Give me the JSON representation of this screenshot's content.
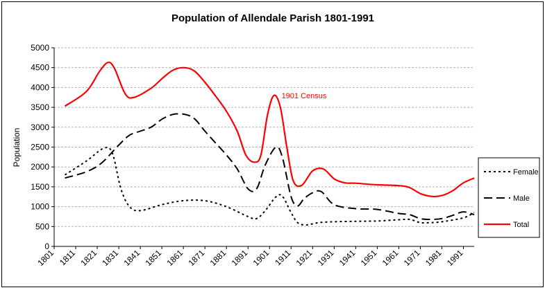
{
  "chart_data": {
    "type": "line",
    "title": "Population of Allendale Parish 1801-1991",
    "xlabel": "",
    "ylabel": "Population",
    "ylim": [
      0,
      5000
    ],
    "yticks": [
      0,
      500,
      1000,
      1500,
      2000,
      2500,
      3000,
      3500,
      4000,
      4500,
      5000
    ],
    "xlim": [
      1801,
      1996
    ],
    "xticks": [
      1801,
      1811,
      1821,
      1831,
      1841,
      1851,
      1861,
      1871,
      1881,
      1891,
      1901,
      1911,
      1921,
      1931,
      1941,
      1951,
      1961,
      1971,
      1981,
      1991
    ],
    "grid": "horizontal dashed",
    "legend_position": "right",
    "annotation": {
      "text": "1901 Census",
      "x": 1904,
      "y": 3800,
      "color": "#ff0000"
    },
    "series": [
      {
        "name": "Female",
        "color": "#000000",
        "style": "dotted",
        "points": [
          [
            1806,
            1800
          ],
          [
            1816,
            2150
          ],
          [
            1824,
            2470
          ],
          [
            1828,
            2350
          ],
          [
            1832,
            1450
          ],
          [
            1836,
            1000
          ],
          [
            1841,
            900
          ],
          [
            1851,
            1050
          ],
          [
            1861,
            1150
          ],
          [
            1871,
            1150
          ],
          [
            1881,
            1000
          ],
          [
            1891,
            750
          ],
          [
            1895,
            700
          ],
          [
            1899,
            900
          ],
          [
            1904,
            1250
          ],
          [
            1907,
            1260
          ],
          [
            1911,
            850
          ],
          [
            1914,
            600
          ],
          [
            1918,
            540
          ],
          [
            1924,
            600
          ],
          [
            1931,
            620
          ],
          [
            1941,
            630
          ],
          [
            1951,
            640
          ],
          [
            1961,
            670
          ],
          [
            1966,
            680
          ],
          [
            1971,
            600
          ],
          [
            1976,
            600
          ],
          [
            1981,
            620
          ],
          [
            1991,
            720
          ],
          [
            1996,
            850
          ]
        ]
      },
      {
        "name": "Male",
        "color": "#000000",
        "style": "dashed",
        "points": [
          [
            1806,
            1720
          ],
          [
            1816,
            1880
          ],
          [
            1823,
            2100
          ],
          [
            1831,
            2550
          ],
          [
            1836,
            2800
          ],
          [
            1841,
            2900
          ],
          [
            1846,
            3000
          ],
          [
            1851,
            3200
          ],
          [
            1856,
            3320
          ],
          [
            1861,
            3330
          ],
          [
            1866,
            3220
          ],
          [
            1871,
            2900
          ],
          [
            1876,
            2600
          ],
          [
            1881,
            2300
          ],
          [
            1886,
            1950
          ],
          [
            1891,
            1450
          ],
          [
            1895,
            1450
          ],
          [
            1899,
            2050
          ],
          [
            1904,
            2500
          ],
          [
            1907,
            2230
          ],
          [
            1911,
            1250
          ],
          [
            1914,
            1020
          ],
          [
            1917,
            1200
          ],
          [
            1921,
            1350
          ],
          [
            1925,
            1380
          ],
          [
            1931,
            1050
          ],
          [
            1941,
            950
          ],
          [
            1951,
            930
          ],
          [
            1961,
            830
          ],
          [
            1966,
            800
          ],
          [
            1971,
            700
          ],
          [
            1976,
            680
          ],
          [
            1981,
            700
          ],
          [
            1986,
            780
          ],
          [
            1991,
            870
          ],
          [
            1996,
            800
          ]
        ]
      },
      {
        "name": "Total",
        "color": "#ff0000",
        "style": "solid",
        "points": [
          [
            1806,
            3530
          ],
          [
            1816,
            3900
          ],
          [
            1822,
            4400
          ],
          [
            1826,
            4630
          ],
          [
            1829,
            4480
          ],
          [
            1834,
            3840
          ],
          [
            1838,
            3750
          ],
          [
            1846,
            3980
          ],
          [
            1851,
            4220
          ],
          [
            1856,
            4430
          ],
          [
            1861,
            4500
          ],
          [
            1866,
            4420
          ],
          [
            1871,
            4130
          ],
          [
            1876,
            3780
          ],
          [
            1881,
            3400
          ],
          [
            1886,
            2900
          ],
          [
            1890,
            2300
          ],
          [
            1894,
            2120
          ],
          [
            1897,
            2300
          ],
          [
            1900,
            3300
          ],
          [
            1903,
            3800
          ],
          [
            1906,
            3500
          ],
          [
            1909,
            2500
          ],
          [
            1912,
            1650
          ],
          [
            1916,
            1540
          ],
          [
            1921,
            1900
          ],
          [
            1926,
            1950
          ],
          [
            1931,
            1700
          ],
          [
            1936,
            1600
          ],
          [
            1941,
            1590
          ],
          [
            1951,
            1550
          ],
          [
            1961,
            1530
          ],
          [
            1966,
            1480
          ],
          [
            1971,
            1330
          ],
          [
            1976,
            1260
          ],
          [
            1981,
            1280
          ],
          [
            1986,
            1400
          ],
          [
            1991,
            1600
          ],
          [
            1996,
            1720
          ]
        ]
      }
    ]
  }
}
